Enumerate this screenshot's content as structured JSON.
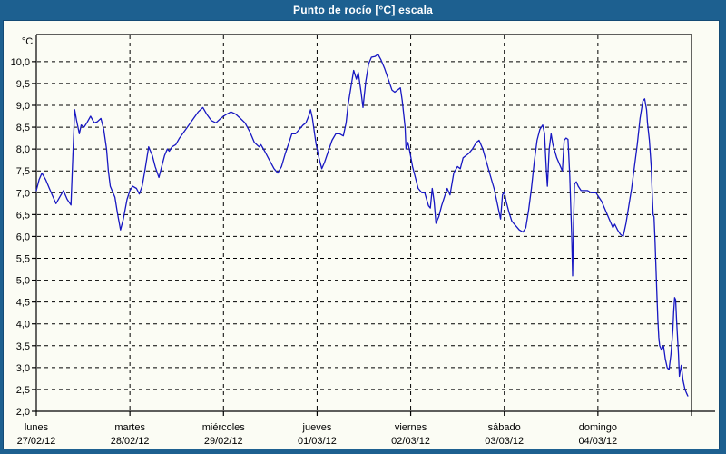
{
  "window": {
    "title": "Punto de rocío [°C] escala",
    "colors": {
      "frame": "#1D6090",
      "frame_dark": "#134A75",
      "content_bg": "#FBFCF4",
      "grid": "#000000",
      "text": "#000000",
      "title_text": "#FFFFFF",
      "line": "#1717C2"
    }
  },
  "chart_data": {
    "type": "line",
    "title": "Punto de rocío [°C] escala",
    "ylabel": "°C",
    "xlabel": "",
    "grid": "dashed",
    "legend_position": "none",
    "x_unit": "days since lunes 27/02/12 00:00",
    "xlim": [
      0,
      7
    ],
    "ylim": [
      2.0,
      10.62
    ],
    "xticks": [
      0,
      1,
      2,
      3,
      4,
      5,
      6,
      7
    ],
    "xgridlines": [
      1,
      2,
      3,
      4,
      5,
      6
    ],
    "x_labels": [
      {
        "t": 0,
        "weekday": "lunes",
        "date": "27/02/12"
      },
      {
        "t": 1,
        "weekday": "martes",
        "date": "28/02/12"
      },
      {
        "t": 2,
        "weekday": "miércoles",
        "date": "29/02/12"
      },
      {
        "t": 3,
        "weekday": "jueves",
        "date": "01/03/12"
      },
      {
        "t": 4,
        "weekday": "viernes",
        "date": "02/03/12"
      },
      {
        "t": 5,
        "weekday": "sábado",
        "date": "03/03/12"
      },
      {
        "t": 6,
        "weekday": "domingo",
        "date": "04/03/12"
      }
    ],
    "yticks": [
      {
        "v": 2.0,
        "label": "2,0"
      },
      {
        "v": 2.5,
        "label": "2,5"
      },
      {
        "v": 3.0,
        "label": "3,0"
      },
      {
        "v": 3.5,
        "label": "3,5"
      },
      {
        "v": 4.0,
        "label": "4,0"
      },
      {
        "v": 4.5,
        "label": "4,5"
      },
      {
        "v": 5.0,
        "label": "5,0"
      },
      {
        "v": 5.5,
        "label": "5,5"
      },
      {
        "v": 6.0,
        "label": "6,0"
      },
      {
        "v": 6.5,
        "label": "6,5"
      },
      {
        "v": 7.0,
        "label": "7,0"
      },
      {
        "v": 7.5,
        "label": "7,5"
      },
      {
        "v": 8.0,
        "label": "8,0"
      },
      {
        "v": 8.5,
        "label": "8,5"
      },
      {
        "v": 9.0,
        "label": "9,0"
      },
      {
        "v": 9.5,
        "label": "9,5"
      },
      {
        "v": 10.0,
        "label": "10,0"
      }
    ],
    "series": [
      {
        "name": "Punto de rocío",
        "color": "#1717C2",
        "points": [
          [
            0,
            7.05
          ],
          [
            0.03,
            7.3
          ],
          [
            0.06,
            7.45
          ],
          [
            0.1,
            7.3
          ],
          [
            0.14,
            7.1
          ],
          [
            0.17,
            6.95
          ],
          [
            0.21,
            6.75
          ],
          [
            0.25,
            6.9
          ],
          [
            0.29,
            7.05
          ],
          [
            0.33,
            6.85
          ],
          [
            0.37,
            6.72
          ],
          [
            0.39,
            7.8
          ],
          [
            0.41,
            8.9
          ],
          [
            0.43,
            8.65
          ],
          [
            0.46,
            8.35
          ],
          [
            0.48,
            8.55
          ],
          [
            0.51,
            8.5
          ],
          [
            0.54,
            8.6
          ],
          [
            0.58,
            8.75
          ],
          [
            0.62,
            8.6
          ],
          [
            0.65,
            8.62
          ],
          [
            0.69,
            8.7
          ],
          [
            0.72,
            8.45
          ],
          [
            0.75,
            8.0
          ],
          [
            0.77,
            7.5
          ],
          [
            0.79,
            7.15
          ],
          [
            0.81,
            7.05
          ],
          [
            0.84,
            6.9
          ],
          [
            0.87,
            6.5
          ],
          [
            0.9,
            6.15
          ],
          [
            0.93,
            6.4
          ],
          [
            0.97,
            6.85
          ],
          [
            1.0,
            7.05
          ],
          [
            1.03,
            7.15
          ],
          [
            1.07,
            7.1
          ],
          [
            1.1,
            6.97
          ],
          [
            1.13,
            7.15
          ],
          [
            1.16,
            7.5
          ],
          [
            1.2,
            8.05
          ],
          [
            1.24,
            7.85
          ],
          [
            1.27,
            7.6
          ],
          [
            1.31,
            7.35
          ],
          [
            1.34,
            7.6
          ],
          [
            1.37,
            7.85
          ],
          [
            1.4,
            8.0
          ],
          [
            1.42,
            7.95
          ],
          [
            1.45,
            8.05
          ],
          [
            1.49,
            8.1
          ],
          [
            1.53,
            8.25
          ],
          [
            1.58,
            8.4
          ],
          [
            1.63,
            8.55
          ],
          [
            1.68,
            8.7
          ],
          [
            1.73,
            8.85
          ],
          [
            1.78,
            8.95
          ],
          [
            1.82,
            8.8
          ],
          [
            1.87,
            8.65
          ],
          [
            1.92,
            8.6
          ],
          [
            1.97,
            8.7
          ],
          [
            2.02,
            8.78
          ],
          [
            2.08,
            8.85
          ],
          [
            2.13,
            8.8
          ],
          [
            2.18,
            8.7
          ],
          [
            2.23,
            8.6
          ],
          [
            2.28,
            8.4
          ],
          [
            2.33,
            8.15
          ],
          [
            2.38,
            8.05
          ],
          [
            2.4,
            8.1
          ],
          [
            2.44,
            7.95
          ],
          [
            2.49,
            7.75
          ],
          [
            2.54,
            7.55
          ],
          [
            2.58,
            7.45
          ],
          [
            2.62,
            7.6
          ],
          [
            2.66,
            7.9
          ],
          [
            2.7,
            8.15
          ],
          [
            2.73,
            8.35
          ],
          [
            2.77,
            8.35
          ],
          [
            2.81,
            8.45
          ],
          [
            2.85,
            8.55
          ],
          [
            2.88,
            8.6
          ],
          [
            2.91,
            8.75
          ],
          [
            2.93,
            8.9
          ],
          [
            2.95,
            8.7
          ],
          [
            2.97,
            8.4
          ],
          [
            2.99,
            8.1
          ],
          [
            3.02,
            7.8
          ],
          [
            3.05,
            7.55
          ],
          [
            3.08,
            7.7
          ],
          [
            3.12,
            7.95
          ],
          [
            3.16,
            8.2
          ],
          [
            3.2,
            8.35
          ],
          [
            3.24,
            8.35
          ],
          [
            3.28,
            8.3
          ],
          [
            3.31,
            8.6
          ],
          [
            3.33,
            9.0
          ],
          [
            3.36,
            9.4
          ],
          [
            3.39,
            9.8
          ],
          [
            3.42,
            9.6
          ],
          [
            3.44,
            9.75
          ],
          [
            3.47,
            9.3
          ],
          [
            3.49,
            8.95
          ],
          [
            3.52,
            9.55
          ],
          [
            3.55,
            9.95
          ],
          [
            3.58,
            10.1
          ],
          [
            3.62,
            10.12
          ],
          [
            3.65,
            10.17
          ],
          [
            3.68,
            10.05
          ],
          [
            3.72,
            9.85
          ],
          [
            3.76,
            9.6
          ],
          [
            3.8,
            9.35
          ],
          [
            3.83,
            9.3
          ],
          [
            3.86,
            9.35
          ],
          [
            3.89,
            9.4
          ],
          [
            3.91,
            9.1
          ],
          [
            3.94,
            8.5
          ],
          [
            3.95,
            8.0
          ],
          [
            3.97,
            8.15
          ],
          [
            3.99,
            7.95
          ],
          [
            4.02,
            7.6
          ],
          [
            4.05,
            7.35
          ],
          [
            4.08,
            7.1
          ],
          [
            4.12,
            7.0
          ],
          [
            4.15,
            7.0
          ],
          [
            4.19,
            6.7
          ],
          [
            4.21,
            6.65
          ],
          [
            4.23,
            7.1
          ],
          [
            4.25,
            6.8
          ],
          [
            4.27,
            6.3
          ],
          [
            4.3,
            6.45
          ],
          [
            4.33,
            6.7
          ],
          [
            4.36,
            6.9
          ],
          [
            4.39,
            7.1
          ],
          [
            4.42,
            6.95
          ],
          [
            4.46,
            7.45
          ],
          [
            4.5,
            7.6
          ],
          [
            4.53,
            7.55
          ],
          [
            4.56,
            7.8
          ],
          [
            4.59,
            7.85
          ],
          [
            4.62,
            7.9
          ],
          [
            4.66,
            8.0
          ],
          [
            4.7,
            8.15
          ],
          [
            4.73,
            8.2
          ],
          [
            4.77,
            8.0
          ],
          [
            4.81,
            7.7
          ],
          [
            4.85,
            7.4
          ],
          [
            4.89,
            7.1
          ],
          [
            4.92,
            6.8
          ],
          [
            4.94,
            6.6
          ],
          [
            4.96,
            6.4
          ],
          [
            4.98,
            6.95
          ],
          [
            5.0,
            7.02
          ],
          [
            5.02,
            6.8
          ],
          [
            5.05,
            6.55
          ],
          [
            5.08,
            6.35
          ],
          [
            5.12,
            6.25
          ],
          [
            5.16,
            6.15
          ],
          [
            5.2,
            6.1
          ],
          [
            5.23,
            6.2
          ],
          [
            5.26,
            6.6
          ],
          [
            5.29,
            7.1
          ],
          [
            5.32,
            7.7
          ],
          [
            5.35,
            8.2
          ],
          [
            5.38,
            8.45
          ],
          [
            5.41,
            8.55
          ],
          [
            5.43,
            8.35
          ],
          [
            5.44,
            7.9
          ],
          [
            5.45,
            7.5
          ],
          [
            5.46,
            7.15
          ],
          [
            5.48,
            8.0
          ],
          [
            5.5,
            8.35
          ],
          [
            5.52,
            8.1
          ],
          [
            5.54,
            7.95
          ],
          [
            5.56,
            7.8
          ],
          [
            5.59,
            7.65
          ],
          [
            5.62,
            7.5
          ],
          [
            5.64,
            8.2
          ],
          [
            5.66,
            8.25
          ],
          [
            5.68,
            8.22
          ],
          [
            5.69,
            7.8
          ],
          [
            5.7,
            7.35
          ],
          [
            5.72,
            6.0
          ],
          [
            5.73,
            5.1
          ],
          [
            5.74,
            6.3
          ],
          [
            5.75,
            7.2
          ],
          [
            5.77,
            7.25
          ],
          [
            5.79,
            7.15
          ],
          [
            5.82,
            7.05
          ],
          [
            5.86,
            7.05
          ],
          [
            5.89,
            7.05
          ],
          [
            5.93,
            7.0
          ],
          [
            5.98,
            7.0
          ],
          [
            6.01,
            6.9
          ],
          [
            6.04,
            6.8
          ],
          [
            6.07,
            6.65
          ],
          [
            6.1,
            6.5
          ],
          [
            6.13,
            6.35
          ],
          [
            6.16,
            6.2
          ],
          [
            6.18,
            6.28
          ],
          [
            6.21,
            6.15
          ],
          [
            6.24,
            6.05
          ],
          [
            6.27,
            6.0
          ],
          [
            6.3,
            6.3
          ],
          [
            6.33,
            6.7
          ],
          [
            6.36,
            7.1
          ],
          [
            6.39,
            7.6
          ],
          [
            6.42,
            8.1
          ],
          [
            6.45,
            8.7
          ],
          [
            6.48,
            9.1
          ],
          [
            6.5,
            9.15
          ],
          [
            6.52,
            8.9
          ],
          [
            6.53,
            8.6
          ],
          [
            6.55,
            8.2
          ],
          [
            6.57,
            7.6
          ],
          [
            6.58,
            7.0
          ],
          [
            6.59,
            6.5
          ],
          [
            6.6,
            6.45
          ],
          [
            6.61,
            5.9
          ],
          [
            6.62,
            5.3
          ],
          [
            6.63,
            4.7
          ],
          [
            6.64,
            4.1
          ],
          [
            6.65,
            3.7
          ],
          [
            6.66,
            3.5
          ],
          [
            6.68,
            3.4
          ],
          [
            6.7,
            3.5
          ],
          [
            6.72,
            3.2
          ],
          [
            6.74,
            3.0
          ],
          [
            6.76,
            2.95
          ],
          [
            6.78,
            3.3
          ],
          [
            6.8,
            3.85
          ],
          [
            6.81,
            4.3
          ],
          [
            6.82,
            4.6
          ],
          [
            6.83,
            4.55
          ],
          [
            6.84,
            4.1
          ],
          [
            6.86,
            3.3
          ],
          [
            6.87,
            2.8
          ],
          [
            6.89,
            3.05
          ],
          [
            6.91,
            2.7
          ],
          [
            6.93,
            2.5
          ],
          [
            6.95,
            2.4
          ],
          [
            6.96,
            2.35
          ]
        ]
      }
    ]
  }
}
